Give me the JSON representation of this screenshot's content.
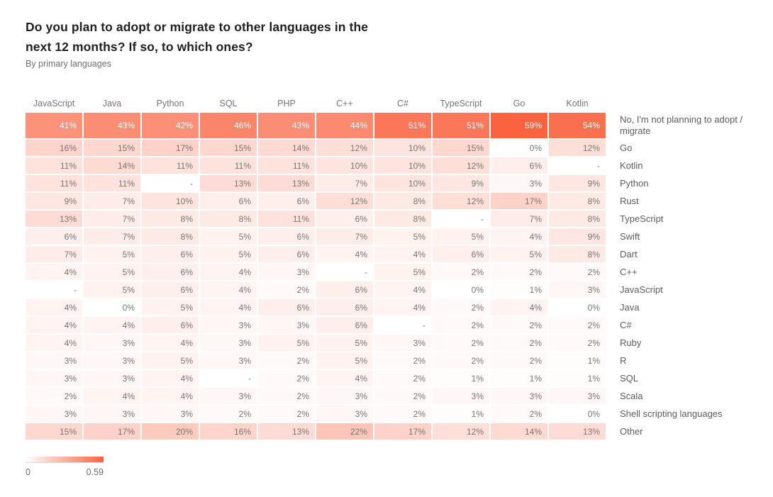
{
  "header": {
    "title": "Do you plan to adopt or migrate to other languages in the next 12 months? If so, to which ones?",
    "subtitle": "By primary languages"
  },
  "chart_data": {
    "type": "heatmap",
    "title": "Do you plan to adopt or migrate to other languages in the next 12 months? If so, to which ones?",
    "subtitle": "By primary languages",
    "columns": [
      "JavaScript",
      "Java",
      "Python",
      "SQL",
      "PHP",
      "C++",
      "C#",
      "TypeScript",
      "Go",
      "Kotlin"
    ],
    "rows": [
      {
        "label": "No, I'm not planning to adopt / migrate",
        "values": [
          41,
          43,
          42,
          46,
          43,
          44,
          51,
          51,
          59,
          54
        ]
      },
      {
        "label": "Go",
        "values": [
          16,
          15,
          17,
          15,
          14,
          12,
          10,
          15,
          0,
          12
        ]
      },
      {
        "label": "Kotlin",
        "values": [
          11,
          14,
          11,
          11,
          11,
          10,
          10,
          12,
          6,
          null
        ]
      },
      {
        "label": "Python",
        "values": [
          11,
          11,
          null,
          13,
          13,
          7,
          10,
          9,
          3,
          9
        ]
      },
      {
        "label": "Rust",
        "values": [
          9,
          7,
          10,
          6,
          6,
          12,
          8,
          12,
          17,
          8
        ]
      },
      {
        "label": "TypeScript",
        "values": [
          13,
          7,
          8,
          8,
          11,
          6,
          8,
          null,
          7,
          8
        ]
      },
      {
        "label": "Swift",
        "values": [
          6,
          7,
          8,
          5,
          6,
          7,
          5,
          5,
          4,
          9
        ]
      },
      {
        "label": "Dart",
        "values": [
          7,
          5,
          6,
          5,
          6,
          4,
          4,
          6,
          5,
          8
        ]
      },
      {
        "label": "C++",
        "values": [
          4,
          5,
          6,
          4,
          3,
          null,
          5,
          2,
          2,
          2
        ]
      },
      {
        "label": "JavaScript",
        "values": [
          null,
          5,
          6,
          4,
          2,
          6,
          4,
          0,
          1,
          3
        ]
      },
      {
        "label": "Java",
        "values": [
          4,
          0,
          5,
          4,
          6,
          6,
          4,
          2,
          4,
          0
        ]
      },
      {
        "label": "C#",
        "values": [
          4,
          4,
          6,
          3,
          3,
          6,
          null,
          2,
          2,
          2
        ]
      },
      {
        "label": "Ruby",
        "values": [
          4,
          3,
          4,
          3,
          5,
          5,
          3,
          2,
          2,
          2
        ]
      },
      {
        "label": "R",
        "values": [
          3,
          3,
          5,
          3,
          2,
          5,
          2,
          2,
          2,
          1
        ]
      },
      {
        "label": "SQL",
        "values": [
          3,
          3,
          4,
          null,
          2,
          4,
          2,
          1,
          1,
          1
        ]
      },
      {
        "label": "Scala",
        "values": [
          2,
          4,
          4,
          3,
          2,
          3,
          2,
          3,
          3,
          3
        ]
      },
      {
        "label": "Shell scripting languages",
        "values": [
          3,
          3,
          3,
          2,
          2,
          3,
          2,
          1,
          2,
          0
        ]
      },
      {
        "label": "Other",
        "values": [
          15,
          17,
          20,
          16,
          13,
          22,
          17,
          12,
          14,
          13
        ]
      }
    ],
    "value_format": "percent",
    "null_display": "-",
    "color_scale": {
      "min": 0,
      "max": 0.59,
      "min_color": "#ffffff",
      "max_color": "#fa6240"
    },
    "legend": {
      "min_label": "0",
      "max_label": "0.59",
      "position": "bottom-left"
    },
    "grid": false
  }
}
